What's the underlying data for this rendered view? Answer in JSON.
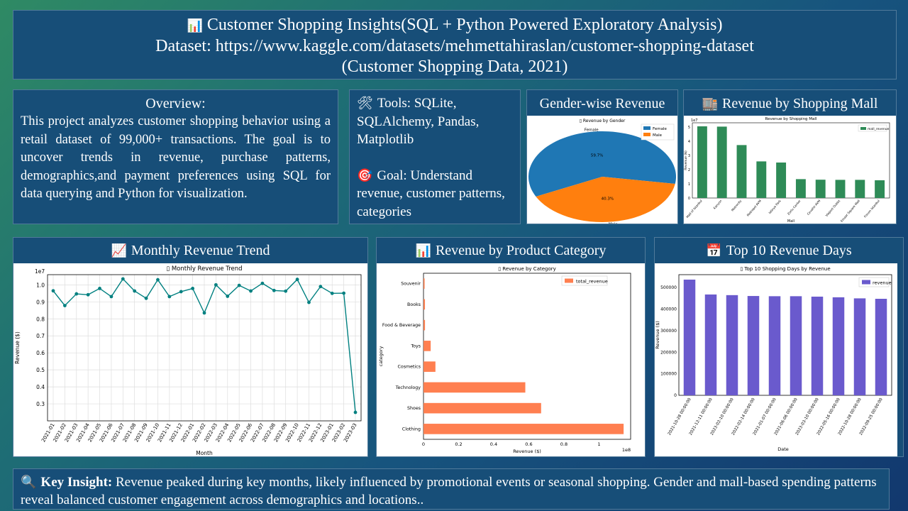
{
  "header": {
    "icon": "bar-chart-icon",
    "line1": "Customer Shopping Insights(SQL + Python Powered Exploratory Analysis)",
    "line2": "Dataset: https://www.kaggle.com/datasets/mehmettahiraslan/customer-shopping-dataset",
    "line3": "(Customer Shopping Data, 2021)"
  },
  "overview": {
    "heading": "Overview:",
    "body": " This project analyzes customer shopping behavior using a retail dataset of 99,000+ transactions. The goal is to uncover trends in revenue, purchase patterns, demographics,and payment preferences using SQL for data querying and Python for visualization."
  },
  "tools": {
    "tools_icon": "hammer-wrench-icon",
    "tools_text": "Tools: SQLite, SQLAlchemy, Pandas, Matplotlib",
    "goal_icon": "target-icon",
    "goal_text": "Goal: Understand revenue, customer patterns, categories"
  },
  "panels": {
    "gender": "Gender-wise Revenue",
    "mall": "Revenue by Shopping Mall",
    "monthly": "Monthly Revenue Trend",
    "category": "Revenue by Product Category",
    "top10": "Top 10 Revenue Days"
  },
  "insight": {
    "icon": "magnifier-icon",
    "label": "Key Insight:",
    "text": " Revenue peaked during key months, likely influenced by promotional events or seasonal shopping. Gender and mall-based spending patterns reveal balanced customer engagement across demographics and locations.."
  },
  "colors": {
    "panel": "#174e78",
    "female": "#1f77b4",
    "male": "#ff7f0e",
    "mall_bar": "#2e8b57",
    "line": "#008080",
    "category_bar": "#ff7f50",
    "top_bar": "#6a5acd"
  },
  "chart_data": [
    {
      "id": "gender",
      "type": "pie",
      "title": "▯ Revenue by Gender",
      "labels": [
        "Female",
        "Male"
      ],
      "values": [
        59.7,
        40.3
      ],
      "pct_labels": [
        "59.7%",
        "40.3%"
      ],
      "legend": "top-right"
    },
    {
      "id": "mall",
      "type": "bar",
      "title": "Revenue by Shopping Mall",
      "scale_label": "1e7",
      "ylabel": "Revenue (₺)",
      "xlabel": "Mall",
      "legend": [
        "mall_revenue"
      ],
      "categories": [
        "Mall of Istanbul",
        "Kanyon",
        "Metrocity",
        "Metropol AVM",
        "Istinye Park",
        "Zorlu Center",
        "Cevahir AVM",
        "Viaport Outlet",
        "Emaar Square Mall",
        "Forum Istanbul"
      ],
      "values": [
        5.05,
        5.03,
        3.73,
        2.58,
        2.5,
        1.33,
        1.29,
        1.28,
        1.28,
        1.25
      ],
      "ylim": [
        0,
        5.3
      ],
      "yticks": [
        0,
        1,
        2,
        3,
        4,
        5
      ]
    },
    {
      "id": "monthly",
      "type": "line",
      "title": "▯ Monthly Revenue Trend",
      "scale_label": "1e7",
      "ylabel": "Revenue ($)",
      "xlabel": "Month",
      "x": [
        "2021-01",
        "2021-02",
        "2021-03",
        "2021-04",
        "2021-05",
        "2021-06",
        "2021-07",
        "2021-08",
        "2021-09",
        "2021-10",
        "2021-11",
        "2021-12",
        "2022-01",
        "2022-02",
        "2022-03",
        "2022-04",
        "2022-05",
        "2022-06",
        "2022-07",
        "2022-08",
        "2022-09",
        "2022-10",
        "2022-11",
        "2022-12",
        "2023-01",
        "2023-02",
        "2023-03"
      ],
      "y": [
        0.965,
        0.878,
        0.947,
        0.942,
        0.979,
        0.931,
        1.035,
        0.964,
        0.921,
        1.03,
        0.931,
        0.96,
        0.979,
        0.835,
        1.0,
        0.933,
        0.997,
        0.964,
        1.009,
        0.967,
        0.963,
        1.032,
        0.897,
        0.99,
        0.95,
        0.951,
        0.25
      ],
      "ylim": [
        0.2,
        1.06
      ],
      "yticks": [
        0.3,
        0.4,
        0.5,
        0.6,
        0.7,
        0.8,
        0.9,
        1.0
      ],
      "grid": true
    },
    {
      "id": "category",
      "type": "bar",
      "orientation": "horizontal",
      "title": "▯ Revenue by Category",
      "scale_label": "1e8",
      "xlabel": "Revenue ($)",
      "ylabel": "category",
      "legend": [
        "total_revenue"
      ],
      "categories": [
        "Clothing",
        "Shoes",
        "Technology",
        "Cosmetics",
        "Toys",
        "Food & Beverage",
        "Books",
        "Souvenir"
      ],
      "values": [
        1.14,
        0.67,
        0.58,
        0.068,
        0.041,
        0.0085,
        0.0083,
        0.0063
      ],
      "xlim": [
        0,
        1.18
      ],
      "xticks": [
        0,
        0.2,
        0.4,
        0.6,
        0.8,
        1.0
      ]
    },
    {
      "id": "top10",
      "type": "bar",
      "title": "▯ Top 10 Shopping Days by Revenue",
      "ylabel": "Revenue ($)",
      "xlabel": "Date",
      "legend": [
        "revenue"
      ],
      "categories": [
        "2021-10-28 00:00:00",
        "2021-12-11 00:00:00",
        "2023-02-10 00:00:00",
        "2022-02-14 00:00:00",
        "2021-01-07 00:00:00",
        "2021-06-06 00:00:00",
        "2023-03-10 00:00:00",
        "2022-05-16 00:00:00",
        "2022-10-28 00:00:00",
        "2022-09-25 00:00:00"
      ],
      "values": [
        537000,
        468000,
        465000,
        461000,
        460000,
        460000,
        458000,
        455000,
        450000,
        448000
      ],
      "ylim": [
        0,
        560000
      ],
      "yticks": [
        0,
        100000,
        200000,
        300000,
        400000,
        500000
      ]
    }
  ]
}
